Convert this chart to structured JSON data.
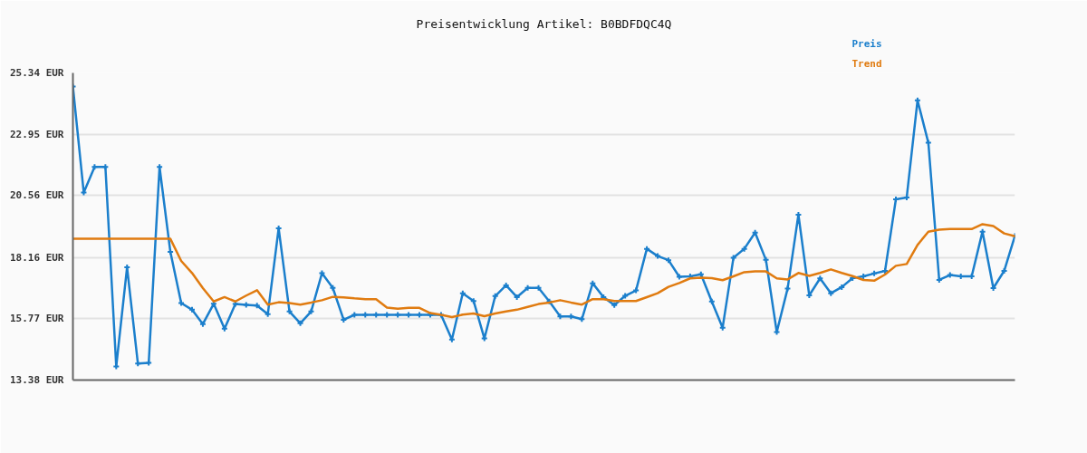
{
  "chart_data": {
    "type": "line",
    "title": "Preisentwicklung Artikel: B0BDFDQC4Q",
    "categories": [
      null,
      null,
      null,
      null,
      null,
      null,
      null,
      null,
      null,
      null,
      null,
      null,
      null,
      null,
      null,
      null,
      null,
      null,
      null,
      null,
      null,
      null,
      null,
      null,
      null,
      null,
      null,
      null,
      null,
      null,
      null,
      null,
      null,
      null,
      null,
      null,
      null,
      null,
      null,
      null,
      null,
      null,
      null,
      null,
      null,
      null,
      null,
      null,
      null,
      null,
      null,
      null,
      null,
      null,
      null,
      null,
      null,
      null,
      null,
      null,
      null,
      null,
      null,
      null,
      null,
      null,
      null,
      null,
      null,
      null,
      null,
      null,
      null,
      null,
      null,
      null,
      null,
      null,
      null,
      null,
      null,
      null,
      null,
      null,
      null,
      null,
      null,
      null
    ],
    "series": [
      {
        "name": "Preis",
        "color": "#1b7fcc",
        "marker": "cross",
        "values": [
          24.81,
          20.68,
          21.68,
          21.68,
          13.91,
          17.77,
          14.02,
          14.05,
          21.68,
          18.37,
          16.38,
          16.12,
          15.56,
          16.35,
          15.38,
          16.34,
          16.31,
          16.28,
          15.95,
          19.29,
          16.05,
          15.59,
          16.05,
          17.54,
          16.97,
          15.73,
          15.92,
          15.92,
          15.92,
          15.92,
          15.92,
          15.92,
          15.92,
          15.92,
          15.92,
          14.96,
          16.76,
          16.46,
          15.0,
          16.65,
          17.07,
          16.61,
          16.97,
          16.97,
          16.44,
          15.86,
          15.86,
          15.75,
          17.15,
          16.61,
          16.3,
          16.66,
          16.87,
          18.49,
          18.21,
          18.05,
          17.4,
          17.42,
          17.5,
          16.44,
          15.42,
          18.14,
          18.49,
          19.12,
          18.06,
          15.25,
          16.94,
          19.82,
          16.68,
          17.34,
          16.76,
          17.0,
          17.35,
          17.42,
          17.53,
          17.63,
          20.42,
          20.49,
          24.27,
          22.62,
          17.28,
          17.47,
          17.42,
          17.42,
          19.16,
          16.96,
          17.63,
          19.0
        ]
      },
      {
        "name": "Trend",
        "color": "#e07b10",
        "values": [
          18.88,
          18.88,
          18.88,
          18.88,
          18.88,
          18.88,
          18.88,
          18.88,
          18.88,
          18.88,
          18.02,
          17.55,
          16.96,
          16.44,
          16.61,
          16.44,
          16.67,
          16.88,
          16.32,
          16.41,
          16.38,
          16.32,
          16.4,
          16.49,
          16.62,
          16.6,
          16.56,
          16.53,
          16.53,
          16.2,
          16.16,
          16.19,
          16.19,
          15.99,
          15.92,
          15.83,
          15.93,
          15.97,
          15.87,
          15.97,
          16.05,
          16.12,
          16.23,
          16.34,
          16.4,
          16.49,
          16.4,
          16.32,
          16.53,
          16.53,
          16.46,
          16.46,
          16.46,
          16.61,
          16.76,
          17.01,
          17.16,
          17.34,
          17.37,
          17.35,
          17.27,
          17.42,
          17.58,
          17.61,
          17.61,
          17.34,
          17.3,
          17.55,
          17.44,
          17.55,
          17.69,
          17.55,
          17.43,
          17.28,
          17.25,
          17.49,
          17.83,
          17.9,
          18.64,
          19.16,
          19.24,
          19.26,
          19.26,
          19.26,
          19.45,
          19.38,
          19.09,
          18.98
        ]
      }
    ],
    "ylim": [
      13.38,
      25.34
    ],
    "yticks": [
      {
        "value": 13.38,
        "label": "13.38 EUR"
      },
      {
        "value": 15.77,
        "label": "15.77 EUR"
      },
      {
        "value": 18.16,
        "label": "18.16 EUR"
      },
      {
        "value": 20.56,
        "label": "20.56 EUR"
      },
      {
        "value": 22.95,
        "label": "22.95 EUR"
      },
      {
        "value": 25.34,
        "label": "25.34 EUR"
      }
    ],
    "grid": "y",
    "tick_labels": "y"
  }
}
